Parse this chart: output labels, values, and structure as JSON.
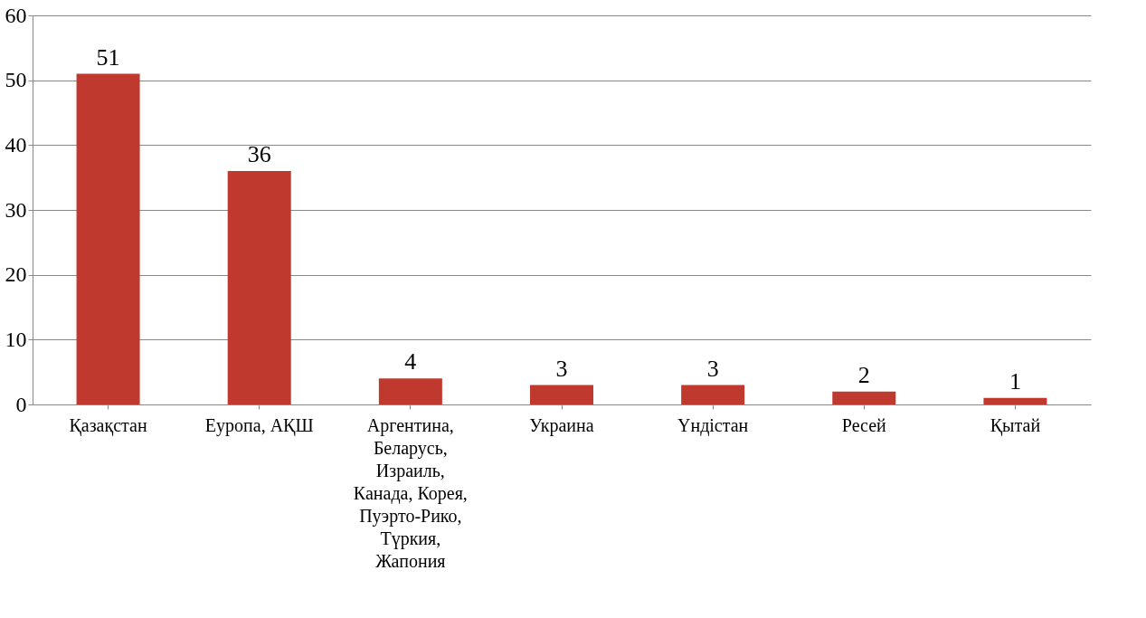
{
  "chart_data": {
    "type": "bar",
    "categories": [
      "Қазақстан",
      "Еуропа,  АҚШ",
      "Аргентина,\nБеларусь,\nИзраиль,\nКанада, Корея,\nПуэрто-Рико,\nТүркия,\nЖапония",
      "Украина",
      "Үндістан",
      "Ресей",
      "Қытай"
    ],
    "values": [
      51,
      36,
      4,
      3,
      3,
      2,
      1
    ],
    "color": "#c0392f",
    "ylim": [
      0,
      60
    ],
    "yticks": [
      0,
      10,
      20,
      30,
      40,
      50,
      60
    ],
    "grid": "y",
    "data_labels": true
  }
}
